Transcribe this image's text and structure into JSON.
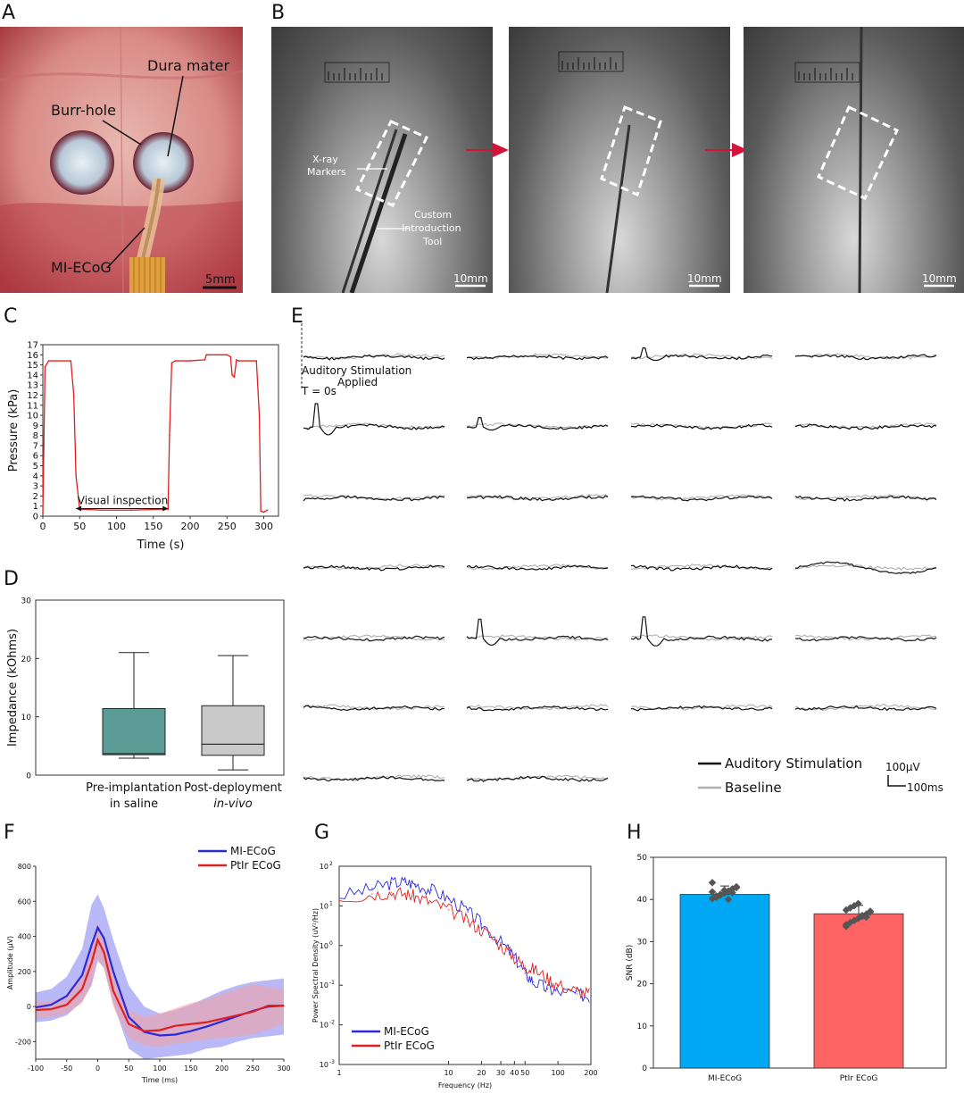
{
  "panels": {
    "A": {
      "letter": "A",
      "labels": {
        "dura": "Dura mater",
        "burr": "Burr-hole",
        "device": "MI-ECoG",
        "scale": "5mm"
      }
    },
    "B": {
      "letter": "B",
      "labels": {
        "markers_1": "X-ray",
        "markers_2": "Markers",
        "tool_1": "Custom",
        "tool_2": "Introduction",
        "tool_3": "Tool",
        "scale": "10mm"
      }
    },
    "C": {
      "letter": "C",
      "annotation": "Visual inspection"
    },
    "D": {
      "letter": "D"
    },
    "E": {
      "letter": "E",
      "stim_1": "Auditory Stimulation",
      "stim_2": "Applied",
      "t0": "T = 0s",
      "legend_stim": "Auditory Stimulation",
      "legend_base": "Baseline",
      "scale_v": "100μV",
      "scale_t": "100ms"
    },
    "F": {
      "letter": "F"
    },
    "G": {
      "letter": "G"
    },
    "H": {
      "letter": "H"
    }
  },
  "colors": {
    "red": "#e02020",
    "blue": "#2a2adc",
    "teal": "#5b9c96",
    "grey": "#c9c9c9",
    "cyan": "#00a8f3",
    "salmon": "#ff6464"
  },
  "chart_data": [
    {
      "id": "C",
      "type": "line",
      "xlabel": "Time (s)",
      "ylabel": "Pressure (kPa)",
      "xlim": [
        0,
        320
      ],
      "ylim": [
        0,
        17
      ],
      "xticks": [
        0,
        50,
        100,
        150,
        200,
        250,
        300
      ],
      "yticks": [
        0,
        1,
        2,
        3,
        4,
        5,
        6,
        7,
        8,
        9,
        10,
        11,
        12,
        13,
        14,
        15,
        16,
        17
      ],
      "x": [
        0,
        3,
        8,
        38,
        42,
        45,
        50,
        80,
        120,
        170,
        172,
        175,
        180,
        200,
        220,
        222,
        250,
        255,
        257,
        260,
        263,
        266,
        290,
        294,
        296,
        300,
        305
      ],
      "y": [
        0.3,
        14.8,
        15.4,
        15.4,
        12,
        4,
        0.7,
        0.6,
        0.6,
        0.7,
        8,
        15.2,
        15.4,
        15.4,
        15.5,
        16.0,
        16.0,
        15.8,
        14.0,
        13.8,
        15.5,
        15.4,
        15.4,
        10,
        0.5,
        0.4,
        0.6
      ]
    },
    {
      "id": "D",
      "type": "box",
      "ylabel": "Impedance (kOhms)",
      "ylim": [
        0,
        30
      ],
      "yticks": [
        0,
        10,
        20,
        30
      ],
      "categories": [
        "Pre-implantation in saline",
        "Post-deployment in-vivo"
      ],
      "category_lines": [
        [
          "Pre-implantation",
          "in saline"
        ],
        [
          "Post-deployment",
          "in-vivo"
        ]
      ],
      "boxes": [
        {
          "min": 2.9,
          "q1": 3.5,
          "median": 3.7,
          "q3": 11.4,
          "max": 21.0
        },
        {
          "min": 0.9,
          "q1": 3.4,
          "median": 5.3,
          "q3": 11.9,
          "max": 20.5
        }
      ]
    },
    {
      "id": "F",
      "type": "line",
      "xlabel": "Time (ms)",
      "ylabel": "Amplitude (μV)",
      "xlim": [
        -100,
        300
      ],
      "ylim": [
        -300,
        800
      ],
      "xticks": [
        -100,
        -50,
        0,
        50,
        100,
        150,
        200,
        250,
        300
      ],
      "yticks": [
        -200,
        0,
        200,
        400,
        600,
        800
      ],
      "x": [
        -100,
        -75,
        -50,
        -25,
        -10,
        0,
        10,
        25,
        50,
        75,
        100,
        125,
        150,
        175,
        200,
        225,
        250,
        275,
        300
      ],
      "series": [
        {
          "name": "MI-ECoG",
          "values": [
            -5,
            10,
            60,
            180,
            350,
            450,
            390,
            200,
            -60,
            -145,
            -165,
            -160,
            -140,
            -115,
            -85,
            -55,
            -25,
            0,
            5
          ],
          "upper": [
            80,
            100,
            170,
            330,
            580,
            640,
            560,
            380,
            120,
            0,
            -40,
            -20,
            10,
            50,
            90,
            120,
            140,
            150,
            160
          ],
          "lower": [
            -90,
            -80,
            -50,
            30,
            120,
            260,
            220,
            20,
            -240,
            -300,
            -290,
            -280,
            -270,
            -240,
            -230,
            -200,
            -180,
            -170,
            -160
          ]
        },
        {
          "name": "PtIr ECoG",
          "values": [
            -20,
            -15,
            10,
            100,
            250,
            380,
            310,
            90,
            -100,
            -140,
            -135,
            -110,
            -100,
            -90,
            -70,
            -50,
            -30,
            5,
            5
          ],
          "upper": [
            30,
            30,
            60,
            180,
            370,
            480,
            400,
            180,
            -20,
            -60,
            -40,
            -10,
            20,
            40,
            70,
            100,
            130,
            110,
            100
          ],
          "lower": [
            -70,
            -60,
            -40,
            20,
            130,
            280,
            220,
            0,
            -180,
            -220,
            -230,
            -210,
            -200,
            -190,
            -180,
            -170,
            -160,
            -130,
            -100
          ]
        }
      ]
    },
    {
      "id": "G",
      "type": "line",
      "xscale": "log",
      "yscale": "log",
      "xlabel": "Frequency (Hz)",
      "ylabel": "Power Spectral Density (uV²/Hz)",
      "xlim": [
        1,
        200
      ],
      "ylim": [
        0.001,
        100
      ],
      "xticks": [
        1,
        10,
        20,
        30,
        40,
        50,
        100,
        200
      ],
      "yticks": [
        0.001,
        0.01,
        0.1,
        1,
        10,
        100
      ],
      "ytick_labels": [
        [
          "10",
          "-3"
        ],
        [
          "10",
          "-2"
        ],
        [
          "10",
          "-1"
        ],
        [
          "10",
          "0"
        ],
        [
          "10",
          "1"
        ],
        [
          "10",
          "2"
        ]
      ],
      "x": [
        1,
        2,
        3,
        4,
        5,
        7,
        10,
        15,
        20,
        30,
        40,
        50,
        60,
        80,
        100,
        150,
        200
      ],
      "series": [
        {
          "name": "MI-ECoG",
          "values": [
            18,
            28,
            38,
            40,
            35,
            25,
            15,
            7,
            3.5,
            1.2,
            0.5,
            0.2,
            0.12,
            0.08,
            0.07,
            0.06,
            0.05
          ]
        },
        {
          "name": "PtIr ECoG",
          "values": [
            16,
            20,
            22,
            20,
            17,
            12,
            8,
            4,
            2.5,
            1.0,
            0.5,
            0.3,
            0.25,
            0.15,
            0.1,
            0.07,
            0.06
          ]
        }
      ]
    },
    {
      "id": "H",
      "type": "bar",
      "ylabel": "SNR (dB)",
      "ylim": [
        0,
        50
      ],
      "yticks": [
        0,
        10,
        20,
        30,
        40,
        50
      ],
      "categories": [
        "MI-ECoG",
        "PtIr ECoG"
      ],
      "values": [
        41.2,
        36.6
      ],
      "errors": [
        2.0,
        2.0
      ],
      "points": [
        [
          40.2,
          40.8,
          41.0,
          41.5,
          42.0,
          42.5,
          43.0,
          41.8,
          40.5,
          41.2,
          42.2,
          40.0,
          41.6,
          42.8,
          44.0
        ],
        [
          34.0,
          34.5,
          35.0,
          35.5,
          36.0,
          36.5,
          37.0,
          37.5,
          38.0,
          38.5,
          39.0,
          36.2,
          35.8,
          37.2,
          33.6
        ]
      ]
    }
  ]
}
